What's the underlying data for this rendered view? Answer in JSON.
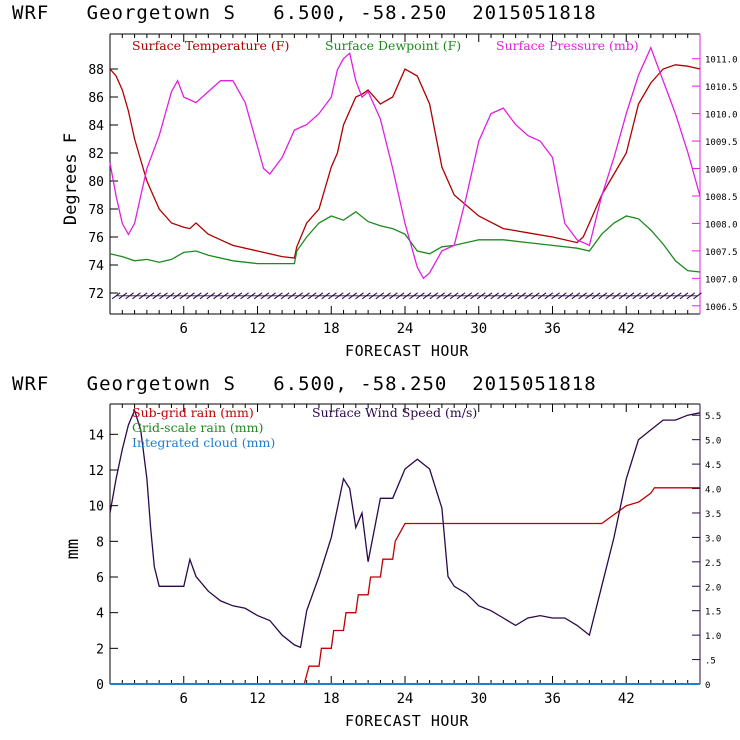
{
  "panels": [
    {
      "title": "WRF   Georgetown S   6.500, -58.250  2015051818",
      "xlabel": "FORECAST HOUR",
      "ylabel": "Degrees F"
    },
    {
      "title": "WRF   Georgetown S   6.500, -58.250  2015051818",
      "xlabel": "FORECAST HOUR",
      "ylabel": "mm"
    }
  ],
  "colors": {
    "temperature": "#b00000",
    "dewpoint": "#1e8a1e",
    "pressure": "#e020e0",
    "wind_barb": "#2a0a4a",
    "subgrid_rain": "#c00000",
    "wind_speed": "#2a0a4a",
    "gridscale_rain": "#1e8a1e",
    "cloud": "#1e7fd0"
  },
  "chart_data": [
    {
      "type": "line",
      "title": "",
      "xlabel": "FORECAST HOUR",
      "ylabel": "Degrees F",
      "xlim": [
        0,
        48
      ],
      "ylim": [
        70.5,
        90.5
      ],
      "y2lim": [
        1006.35,
        1011.45
      ],
      "xticks": [
        6,
        12,
        18,
        24,
        30,
        36,
        42
      ],
      "yticks": [
        72,
        74,
        76,
        78,
        80,
        82,
        84,
        86,
        88
      ],
      "y2ticks": [
        "1006.5",
        "1007.0",
        "1007.5",
        "1008.0",
        "1008.5",
        "1009.0",
        "1009.5",
        "1010.0",
        "1010.5",
        "1011.0"
      ],
      "wind_barb_level": 71.8,
      "series": [
        {
          "name": "Surface Temperature (F)",
          "axis": "left",
          "x": [
            0,
            0.5,
            1,
            1.5,
            2,
            2.5,
            3,
            3.5,
            4,
            5,
            6,
            6.5,
            7,
            8,
            9,
            10,
            12,
            14,
            15,
            15.2,
            16,
            17,
            18,
            18.5,
            19,
            20,
            20.5,
            21,
            22,
            23,
            24,
            25,
            26,
            27,
            28,
            30,
            32,
            34,
            36,
            38,
            38.5,
            39,
            40,
            41,
            42,
            43,
            44,
            45,
            46,
            47,
            48
          ],
          "y": [
            88,
            87.5,
            86.5,
            85,
            83,
            81.5,
            80,
            79,
            78,
            77,
            76.7,
            76.6,
            77,
            76.2,
            75.8,
            75.4,
            75,
            74.6,
            74.5,
            75.3,
            77,
            78,
            81,
            82,
            84,
            86,
            86.2,
            86.5,
            85.5,
            86,
            88,
            87.5,
            85.5,
            81,
            79,
            77.5,
            76.6,
            76.3,
            76,
            75.6,
            76,
            77,
            79,
            80.5,
            82,
            85.5,
            87,
            88,
            88.3,
            88.2,
            88
          ]
        },
        {
          "name": "Surface Dewpoint (F)",
          "axis": "left",
          "x": [
            0,
            1,
            2,
            3,
            4,
            5,
            6,
            7,
            8,
            10,
            12,
            14,
            15,
            15.2,
            16,
            17,
            18,
            19,
            20,
            21,
            22,
            23,
            24,
            25,
            26,
            27,
            28,
            30,
            32,
            34,
            36,
            38,
            39,
            40,
            41,
            42,
            43,
            44,
            45,
            46,
            47,
            48
          ],
          "y": [
            74.8,
            74.6,
            74.3,
            74.4,
            74.2,
            74.4,
            74.9,
            75,
            74.7,
            74.3,
            74.1,
            74.1,
            74.1,
            75,
            76,
            77,
            77.5,
            77.2,
            77.8,
            77.1,
            76.8,
            76.6,
            76.2,
            75,
            74.8,
            75.3,
            75.4,
            75.8,
            75.8,
            75.6,
            75.4,
            75.2,
            75,
            76.2,
            77,
            77.5,
            77.3,
            76.5,
            75.5,
            74.3,
            73.6,
            73.5
          ]
        },
        {
          "name": "Surface Pressure (mb)",
          "axis": "right",
          "x": [
            0,
            0.5,
            1,
            1.5,
            2,
            2.5,
            3,
            4,
            5,
            5.5,
            6,
            7,
            8,
            9,
            10,
            11,
            12,
            12.5,
            13,
            14,
            15,
            16,
            17,
            18,
            18.5,
            19,
            19.5,
            20,
            20.5,
            21,
            22,
            23,
            24,
            25,
            25.5,
            26,
            27,
            28,
            29,
            30,
            31,
            32,
            33,
            34,
            35,
            36,
            37,
            38,
            39,
            40,
            41,
            42,
            43,
            44,
            45,
            46,
            47,
            48
          ],
          "y": [
            1009.1,
            1008.5,
            1008.0,
            1007.8,
            1008.0,
            1008.5,
            1009.0,
            1009.6,
            1010.4,
            1010.6,
            1010.3,
            1010.2,
            1010.4,
            1010.6,
            1010.6,
            1010.2,
            1009.4,
            1009.0,
            1008.9,
            1009.2,
            1009.7,
            1009.8,
            1010.0,
            1010.3,
            1010.8,
            1011.0,
            1011.1,
            1010.6,
            1010.3,
            1010.4,
            1009.9,
            1009.0,
            1008.0,
            1007.2,
            1007.0,
            1007.1,
            1007.5,
            1007.6,
            1008.5,
            1009.5,
            1010.0,
            1010.1,
            1009.8,
            1009.6,
            1009.5,
            1009.2,
            1008.0,
            1007.7,
            1007.6,
            1008.5,
            1009.2,
            1010.0,
            1010.7,
            1011.2,
            1010.6,
            1010.0,
            1009.3,
            1008.5
          ]
        }
      ]
    },
    {
      "type": "line",
      "title": "",
      "xlabel": "FORECAST HOUR",
      "ylabel": "mm",
      "xlim": [
        0,
        48
      ],
      "ylim": [
        0,
        15.7
      ],
      "y2lim": [
        0,
        5.73
      ],
      "xticks": [
        6,
        12,
        18,
        24,
        30,
        36,
        42
      ],
      "yticks": [
        0,
        2,
        4,
        6,
        8,
        10,
        12,
        14
      ],
      "y2ticks": [
        "0",
        ".5",
        "1.0",
        "1.5",
        "2.0",
        "2.5",
        "3.0",
        "3.5",
        "4.0",
        "4.5",
        "5.0",
        "5.5"
      ],
      "series": [
        {
          "name": "Sub-grid rain (mm)",
          "axis": "left",
          "x": [
            0,
            15.8,
            16.2,
            17,
            17.2,
            18,
            18.2,
            19,
            19.2,
            20,
            20.2,
            21,
            21.2,
            22,
            22.2,
            23,
            23.2,
            24,
            40,
            41,
            42,
            43,
            44,
            44.3,
            48
          ],
          "y": [
            0,
            0,
            1,
            1,
            2,
            2,
            3,
            3,
            4,
            4,
            5,
            5,
            6,
            6,
            7,
            7,
            8,
            9,
            9,
            9.5,
            10,
            10.2,
            10.7,
            11,
            11
          ]
        },
        {
          "name": "Surface Wind Speed (m/s)",
          "axis": "right",
          "x": [
            0,
            0.5,
            1,
            1.5,
            2,
            2.5,
            3,
            3.3,
            3.6,
            4,
            5,
            6,
            6.5,
            7,
            8,
            9,
            10,
            11,
            12,
            13,
            14,
            15,
            15.5,
            16,
            17,
            18,
            19,
            19.5,
            20,
            20.5,
            21,
            22,
            23,
            24,
            25,
            26,
            27,
            27.5,
            28,
            29,
            30,
            31,
            32,
            33,
            34,
            35,
            36,
            37,
            38,
            39,
            40,
            41,
            42,
            43,
            44,
            45,
            46,
            47,
            48
          ],
          "y": [
            3.5,
            4.2,
            4.8,
            5.3,
            5.6,
            5.2,
            4.2,
            3.2,
            2.4,
            2.0,
            2.0,
            2.0,
            2.55,
            2.2,
            1.9,
            1.7,
            1.6,
            1.55,
            1.4,
            1.3,
            1.0,
            0.8,
            0.75,
            1.5,
            2.2,
            3.0,
            4.2,
            4.0,
            3.2,
            3.5,
            2.5,
            3.8,
            3.8,
            4.4,
            4.6,
            4.4,
            3.6,
            2.2,
            2.0,
            1.85,
            1.6,
            1.5,
            1.35,
            1.2,
            1.35,
            1.4,
            1.35,
            1.35,
            1.2,
            1.0,
            2.0,
            3.0,
            4.2,
            5.0,
            5.2,
            5.4,
            5.4,
            5.5,
            5.55
          ]
        },
        {
          "name": "Grid-scale rain (mm)",
          "axis": "left",
          "x": [
            0,
            48
          ],
          "y": [
            0,
            0
          ]
        },
        {
          "name": "Integrated cloud (mm)",
          "axis": "left",
          "x": [
            0,
            48
          ],
          "y": [
            0,
            0
          ]
        }
      ]
    }
  ]
}
